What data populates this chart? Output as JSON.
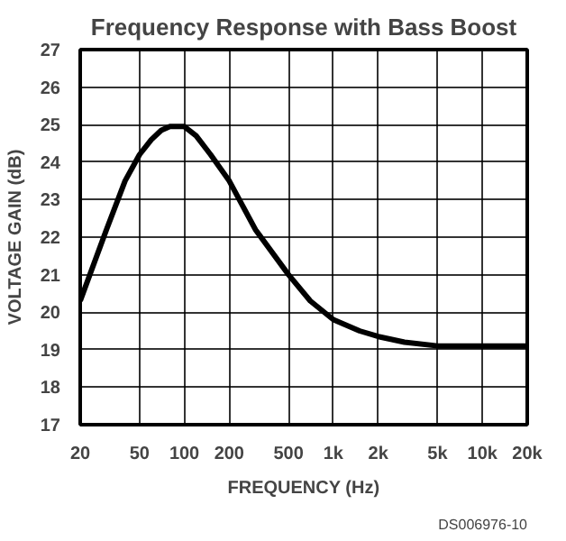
{
  "chart_data": {
    "type": "line",
    "title": "Frequency Response with Bass Boost",
    "xlabel": "FREQUENCY (Hz)",
    "ylabel": "VOLTAGE GAIN (dB)",
    "x": [
      20,
      30,
      40,
      50,
      60,
      70,
      80,
      100,
      120,
      150,
      200,
      300,
      500,
      700,
      1000,
      1500,
      2000,
      3000,
      5000,
      10000,
      20000
    ],
    "series": [
      {
        "color": "#000000",
        "values": [
          20.3,
          22.2,
          23.5,
          24.2,
          24.6,
          24.85,
          24.95,
          24.95,
          24.7,
          24.2,
          23.5,
          22.2,
          21.0,
          20.3,
          19.8,
          19.5,
          19.35,
          19.2,
          19.1,
          19.1,
          19.1
        ]
      }
    ],
    "log": "x",
    "xlim": [
      20,
      20000
    ],
    "ylim": [
      17,
      27
    ],
    "xticks": [
      20,
      50,
      100,
      200,
      500,
      {
        "value": 1000,
        "label": "1k"
      },
      {
        "value": 2000,
        "label": "2k"
      },
      {
        "value": 5000,
        "label": "5k"
      },
      {
        "value": 10000,
        "label": "10k"
      },
      {
        "value": 20000,
        "label": "20k"
      }
    ],
    "yticks": [
      17,
      18,
      19,
      20,
      21,
      22,
      23,
      24,
      25,
      26,
      27
    ],
    "grid": true,
    "marker": "none",
    "line_style": "solid",
    "annotations": [
      "DS006976-10"
    ]
  }
}
